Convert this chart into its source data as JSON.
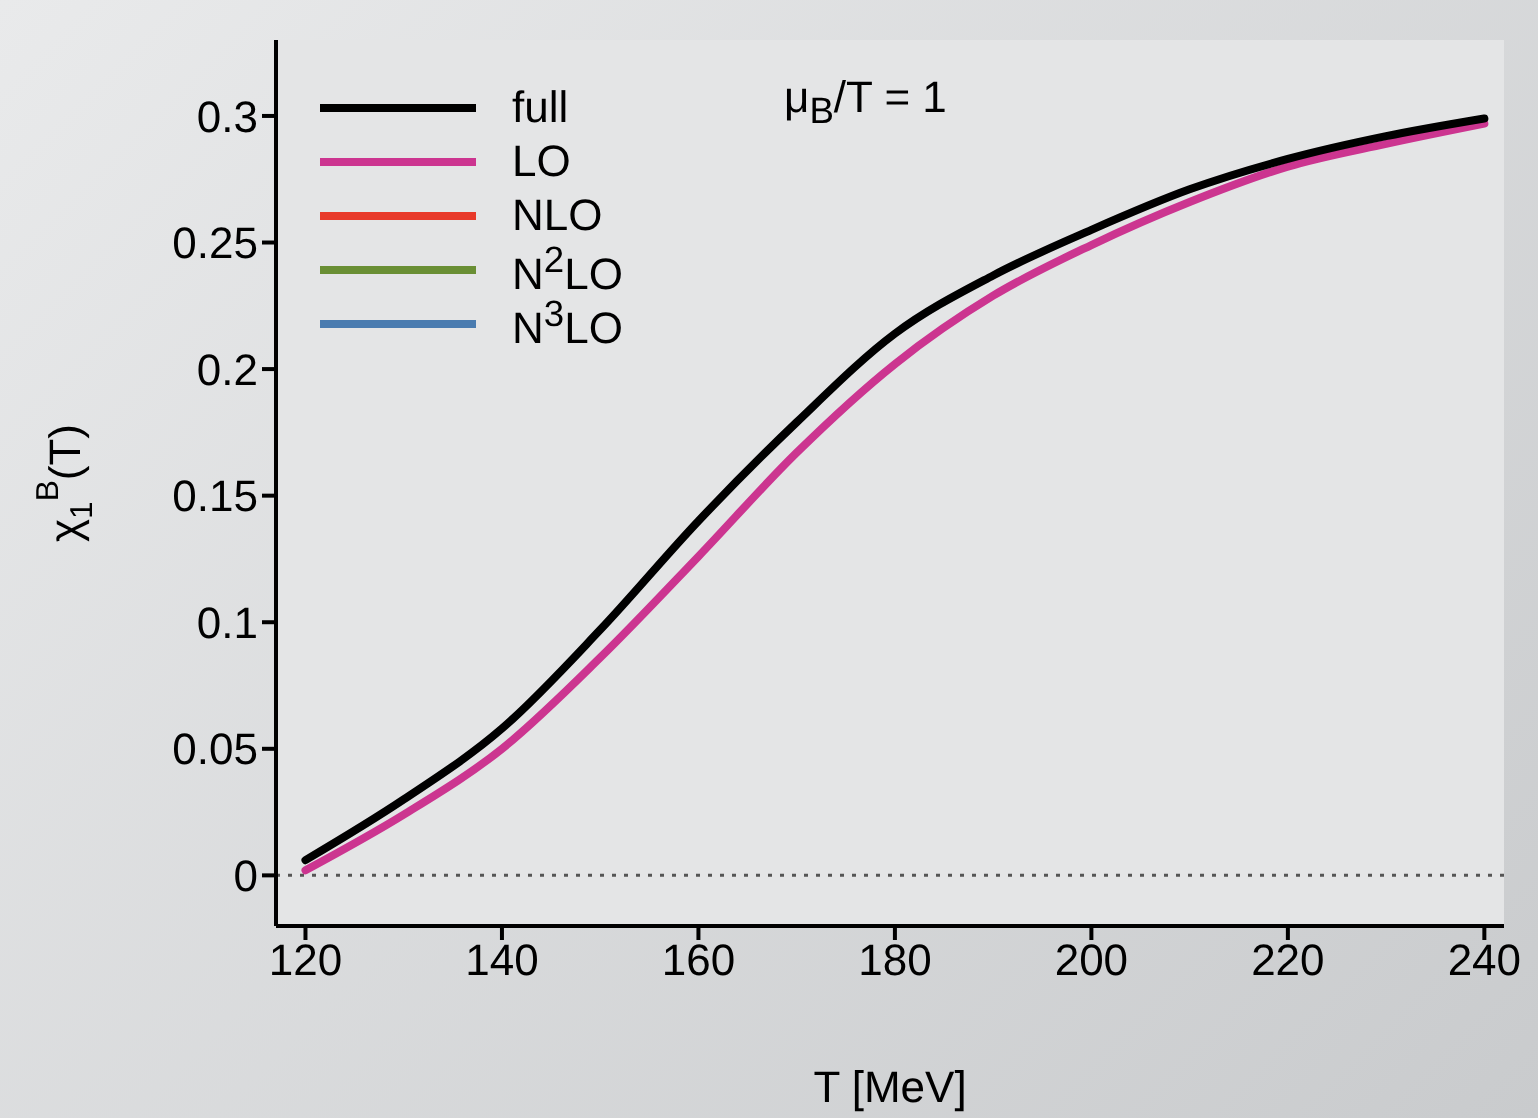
{
  "chart_data": {
    "type": "line",
    "xlabel": "T [MeV]",
    "ylabel": "χ$_{1}$$^{B}$(T)",
    "annotations": [
      "μ$_{B}$/T = 1"
    ],
    "x": [
      120,
      130,
      140,
      150,
      160,
      170,
      180,
      190,
      200,
      210,
      220,
      230,
      240
    ],
    "series": [
      {
        "name": "full",
        "color": "#000000",
        "values": [
          0.006,
          0.03,
          0.058,
          0.097,
          0.14,
          0.179,
          0.214,
          0.237,
          0.255,
          0.271,
          0.283,
          0.292,
          0.299
        ]
      },
      {
        "name": "LO",
        "color": "#cc3590",
        "values": [
          0.002,
          0.024,
          0.05,
          0.086,
          0.126,
          0.167,
          0.202,
          0.229,
          0.249,
          0.266,
          0.28,
          0.289,
          0.297
        ]
      },
      {
        "name": "NLO",
        "color": "#e8392a",
        "values": [
          null,
          null,
          null,
          null,
          null,
          null,
          null,
          null,
          null,
          null,
          null,
          null,
          null
        ]
      },
      {
        "name": "N$^{2}$LO",
        "color": "#6a8f35",
        "values": [
          null,
          null,
          null,
          null,
          null,
          null,
          null,
          null,
          null,
          null,
          null,
          null,
          null
        ]
      },
      {
        "name": "N$^{3}$LO",
        "color": "#4a7cb0",
        "values": [
          null,
          null,
          null,
          null,
          null,
          null,
          null,
          null,
          null,
          null,
          null,
          null,
          null
        ]
      }
    ],
    "xlim": [
      117,
      242
    ],
    "xticks": [
      120,
      140,
      160,
      180,
      200,
      220,
      240
    ],
    "ylim": [
      -0.02,
      0.33
    ],
    "yticks": [
      0,
      0.05,
      0.1,
      0.15,
      0.2,
      0.25,
      0.3
    ],
    "ref_lines": [
      {
        "axis": "y",
        "value": 0,
        "line_style": "dotted",
        "color": "#555555"
      }
    ],
    "legend": "top left",
    "grid": false,
    "marker": "none",
    "line_style": "solid"
  }
}
